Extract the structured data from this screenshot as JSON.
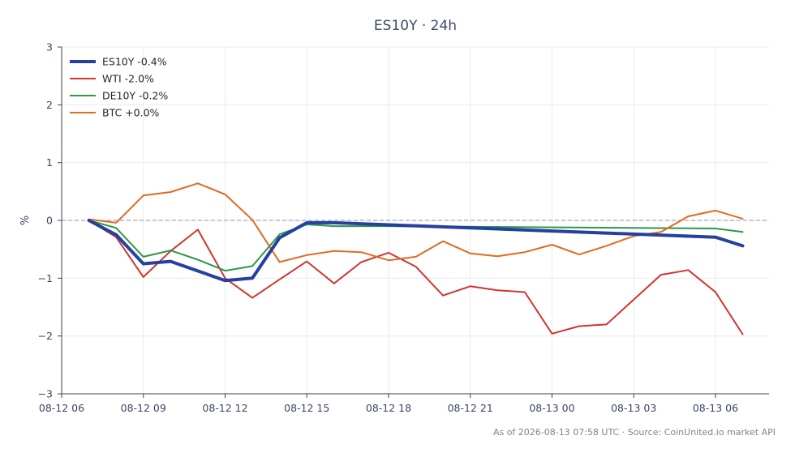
{
  "chart_data": {
    "type": "line",
    "title": "ES10Y · 24h",
    "xlabel": "",
    "ylabel": "%",
    "ylim": [
      -3,
      3
    ],
    "yticks": [
      -3,
      -2,
      -1,
      0,
      1,
      2,
      3
    ],
    "ytick_labels": [
      "−3",
      "−2",
      "−1",
      "0",
      "1",
      "2",
      "3"
    ],
    "xlim": [
      "2026-08-12 06:00",
      "2026-08-13 07:58"
    ],
    "xticks": [
      "2026-08-12 06:00",
      "2026-08-12 09:00",
      "2026-08-12 12:00",
      "2026-08-12 15:00",
      "2026-08-12 18:00",
      "2026-08-12 21:00",
      "2026-08-13 00:00",
      "2026-08-13 03:00",
      "2026-08-13 06:00"
    ],
    "xtick_labels": [
      "08-12 06",
      "08-12 09",
      "08-12 12",
      "08-12 15",
      "08-12 18",
      "08-12 21",
      "08-13 00",
      "08-13 03",
      "08-13 06"
    ],
    "grid": true,
    "zero_line": true,
    "legend_position": "top-left",
    "series": [
      {
        "name": "ES10Y -0.4%",
        "color": "#2540a0",
        "width": "thick",
        "x": [
          "2026-08-12 07:00",
          "2026-08-12 08:00",
          "2026-08-12 09:00",
          "2026-08-12 10:00",
          "2026-08-12 12:00",
          "2026-08-12 13:00",
          "2026-08-12 14:00",
          "2026-08-12 15:00",
          "2026-08-12 16:00",
          "2026-08-13 06:00",
          "2026-08-13 07:00"
        ],
        "values": [
          0.0,
          -0.25,
          -0.75,
          -0.71,
          -1.04,
          -1.0,
          -0.3,
          -0.04,
          -0.04,
          -0.29,
          -0.44
        ]
      },
      {
        "name": "WTI -2.0%",
        "color": "#d03530",
        "width": "normal",
        "x": [
          "2026-08-12 07:00",
          "2026-08-12 08:00",
          "2026-08-12 09:00",
          "2026-08-12 10:00",
          "2026-08-12 11:00",
          "2026-08-12 12:00",
          "2026-08-12 13:00",
          "2026-08-12 14:00",
          "2026-08-12 15:00",
          "2026-08-12 16:00",
          "2026-08-12 17:00",
          "2026-08-12 18:00",
          "2026-08-12 19:00",
          "2026-08-12 20:00",
          "2026-08-12 21:00",
          "2026-08-12 22:00",
          "2026-08-12 23:00",
          "2026-08-13 00:00",
          "2026-08-13 01:00",
          "2026-08-13 02:00",
          "2026-08-13 03:00",
          "2026-08-13 04:00",
          "2026-08-13 05:00",
          "2026-08-13 06:00",
          "2026-08-13 07:00"
        ],
        "values": [
          0.0,
          -0.29,
          -0.98,
          -0.53,
          -0.16,
          -1.0,
          -1.34,
          -1.02,
          -0.71,
          -1.09,
          -0.72,
          -0.56,
          -0.8,
          -1.3,
          -1.14,
          -1.21,
          -1.24,
          -1.96,
          -1.83,
          -1.8,
          -1.37,
          -0.94,
          -0.86,
          -1.24,
          -1.97
        ]
      },
      {
        "name": "DE10Y -0.2%",
        "color": "#2a9a48",
        "width": "normal",
        "x": [
          "2026-08-12 07:00",
          "2026-08-12 08:00",
          "2026-08-12 09:00",
          "2026-08-12 10:00",
          "2026-08-12 11:00",
          "2026-08-12 12:00",
          "2026-08-12 13:00",
          "2026-08-12 14:00",
          "2026-08-12 15:00",
          "2026-08-12 16:00",
          "2026-08-12 18:00",
          "2026-08-13 06:00",
          "2026-08-13 07:00"
        ],
        "values": [
          0.0,
          -0.13,
          -0.63,
          -0.52,
          -0.68,
          -0.87,
          -0.79,
          -0.24,
          -0.07,
          -0.1,
          -0.1,
          -0.14,
          -0.2
        ]
      },
      {
        "name": "BTC +0.0%",
        "color": "#e06a22",
        "width": "normal",
        "x": [
          "2026-08-12 07:00",
          "2026-08-12 08:00",
          "2026-08-12 09:00",
          "2026-08-12 10:00",
          "2026-08-12 11:00",
          "2026-08-12 12:00",
          "2026-08-12 13:00",
          "2026-08-12 14:00",
          "2026-08-12 15:00",
          "2026-08-12 16:00",
          "2026-08-12 17:00",
          "2026-08-12 18:00",
          "2026-08-12 19:00",
          "2026-08-12 20:00",
          "2026-08-12 21:00",
          "2026-08-12 22:00",
          "2026-08-12 23:00",
          "2026-08-13 00:00",
          "2026-08-13 01:00",
          "2026-08-13 02:00",
          "2026-08-13 03:00",
          "2026-08-13 04:00",
          "2026-08-13 05:00",
          "2026-08-13 06:00",
          "2026-08-13 07:00"
        ],
        "values": [
          0.02,
          -0.04,
          0.43,
          0.49,
          0.64,
          0.45,
          0.01,
          -0.72,
          -0.6,
          -0.53,
          -0.55,
          -0.69,
          -0.63,
          -0.36,
          -0.57,
          -0.62,
          -0.55,
          -0.42,
          -0.59,
          -0.44,
          -0.27,
          -0.2,
          0.07,
          0.17,
          0.03
        ]
      }
    ]
  },
  "footnote": "As of 2026-08-13 07:58 UTC · Source: CoinUnited.io market API"
}
